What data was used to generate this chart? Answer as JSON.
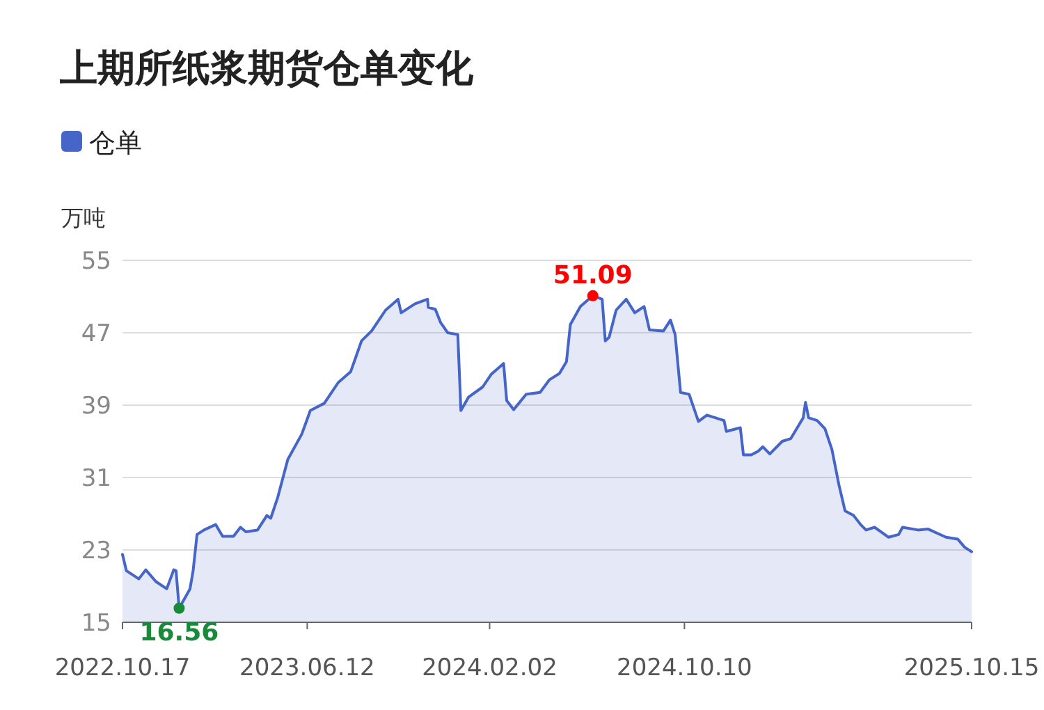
{
  "chart_data": {
    "type": "area",
    "title": "上期所纸浆期货仓单变化",
    "ylabel": "万吨",
    "legend": "top left",
    "grid": "y",
    "xlim": [
      "2022-10-17",
      "2025-10-15"
    ],
    "xticks": [
      {
        "value": "2022-10-17",
        "label": "2022.10.17"
      },
      {
        "value": "2023-06-12",
        "label": "2023.06.12"
      },
      {
        "value": "2024-02-02",
        "label": "2024.02.02"
      },
      {
        "value": "2024-10-10",
        "label": "2024.10.10"
      },
      {
        "value": "2025-10-15",
        "label": "2025.10.15"
      }
    ],
    "ylim": [
      15,
      55
    ],
    "yticks": [
      15,
      23,
      31,
      39,
      47,
      55
    ],
    "annotations": [
      {
        "text": "16.56",
        "x": "2022-12-29",
        "y": 16.56
      },
      {
        "text": "51.09",
        "x": "2024-06-14",
        "y": 51.09
      }
    ],
    "series": [
      {
        "name": "仓单",
        "color": "#4565c8",
        "x": [
          "2022-10-17",
          "2022-10-22",
          "2022-11-07",
          "2022-11-16",
          "2022-11-29",
          "2022-12-13",
          "2022-12-22",
          "2022-12-25",
          "2022-12-29",
          "2023-01-12",
          "2023-01-16",
          "2023-01-21",
          "2023-01-30",
          "2023-02-14",
          "2023-02-23",
          "2023-03-09",
          "2023-03-18",
          "2023-03-25",
          "2023-04-09",
          "2023-04-21",
          "2023-04-26",
          "2023-05-05",
          "2023-05-18",
          "2023-06-05",
          "2023-06-16",
          "2023-07-04",
          "2023-07-22",
          "2023-08-07",
          "2023-08-21",
          "2023-09-03",
          "2023-09-21",
          "2023-10-07",
          "2023-10-11",
          "2023-10-29",
          "2023-11-14",
          "2023-11-15",
          "2023-11-24",
          "2023-12-01",
          "2023-12-10",
          "2023-12-23",
          "2023-12-27",
          "2024-01-06",
          "2024-01-24",
          "2024-02-04",
          "2024-02-20",
          "2024-02-24",
          "2024-03-04",
          "2024-03-20",
          "2024-04-07",
          "2024-04-19",
          "2024-05-02",
          "2024-05-11",
          "2024-05-16",
          "2024-05-29",
          "2024-06-14",
          "2024-06-26",
          "2024-06-30",
          "2024-07-05",
          "2024-07-14",
          "2024-07-27",
          "2024-08-07",
          "2024-08-19",
          "2024-08-26",
          "2024-09-13",
          "2024-09-22",
          "2024-09-28",
          "2024-10-05",
          "2024-10-16",
          "2024-10-28",
          "2024-11-08",
          "2024-11-30",
          "2024-12-03",
          "2024-12-21",
          "2024-12-25",
          "2025-01-04",
          "2025-01-13",
          "2025-01-19",
          "2025-01-28",
          "2025-02-13",
          "2025-02-24",
          "2025-03-12",
          "2025-03-15",
          "2025-03-19",
          "2025-03-30",
          "2025-04-09",
          "2025-04-18",
          "2025-04-27",
          "2025-05-05",
          "2025-05-16",
          "2025-05-25",
          "2025-06-01",
          "2025-06-12",
          "2025-06-30",
          "2025-07-13",
          "2025-07-18",
          "2025-08-07",
          "2025-08-20",
          "2025-09-12",
          "2025-09-27",
          "2025-10-06",
          "2025-10-15"
        ],
        "values": [
          22.5,
          20.7,
          19.8,
          20.8,
          19.5,
          18.7,
          20.8,
          20.7,
          16.56,
          18.7,
          20.7,
          24.7,
          25.2,
          25.8,
          24.5,
          24.5,
          25.5,
          25.0,
          25.2,
          26.8,
          26.5,
          28.8,
          33.0,
          35.8,
          38.4,
          39.2,
          41.5,
          42.7,
          46.1,
          47.2,
          49.5,
          50.7,
          49.2,
          50.2,
          50.7,
          49.8,
          49.6,
          48.1,
          47.0,
          46.8,
          38.4,
          39.9,
          41.0,
          42.4,
          43.6,
          39.5,
          38.5,
          40.2,
          40.4,
          41.8,
          42.5,
          43.8,
          47.9,
          49.9,
          51.09,
          50.7,
          46.1,
          46.5,
          49.5,
          50.7,
          49.2,
          49.9,
          47.3,
          47.2,
          48.4,
          46.8,
          40.4,
          40.2,
          37.2,
          37.9,
          37.3,
          36.1,
          36.5,
          33.5,
          33.5,
          33.9,
          34.4,
          33.6,
          35.0,
          35.3,
          37.6,
          39.3,
          37.6,
          37.3,
          36.4,
          34.1,
          30.2,
          27.3,
          26.8,
          25.8,
          25.2,
          25.5,
          24.4,
          24.7,
          25.5,
          25.2,
          25.3,
          24.4,
          24.2,
          23.3,
          22.8
        ]
      }
    ]
  }
}
